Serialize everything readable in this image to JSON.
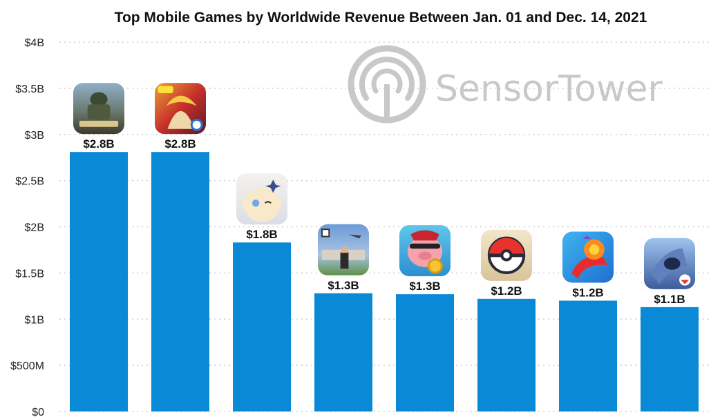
{
  "chart_data": {
    "type": "bar",
    "title": "Top Mobile Games by Worldwide Revenue Between Jan. 01 and Dec. 14, 2021",
    "xlabel": "",
    "ylabel": "",
    "ylim": [
      0,
      4000000000
    ],
    "grid": true,
    "legend": "none",
    "y_ticks": [
      {
        "value": 0,
        "label": "$0"
      },
      {
        "value": 500000000,
        "label": "$500M"
      },
      {
        "value": 1000000000,
        "label": "$1B"
      },
      {
        "value": 1500000000,
        "label": "$1.5B"
      },
      {
        "value": 2000000000,
        "label": "$2B"
      },
      {
        "value": 2500000000,
        "label": "$2.5B"
      },
      {
        "value": 3000000000,
        "label": "$3B"
      },
      {
        "value": 3500000000,
        "label": "$3.5B"
      },
      {
        "value": 4000000000,
        "label": "$4B"
      }
    ],
    "bars": [
      {
        "value": 2810000000,
        "label": "$2.8B",
        "icon": "pubg-mobile-icon"
      },
      {
        "value": 2810000000,
        "label": "$2.8B",
        "icon": "honor-of-kings-icon"
      },
      {
        "value": 1830000000,
        "label": "$1.8B",
        "icon": "genshin-impact-icon"
      },
      {
        "value": 1280000000,
        "label": "$1.3B",
        "icon": "roblox-icon"
      },
      {
        "value": 1270000000,
        "label": "$1.3B",
        "icon": "coin-master-icon"
      },
      {
        "value": 1220000000,
        "label": "$1.2B",
        "icon": "pokemon-go-icon"
      },
      {
        "value": 1200000000,
        "label": "$1.2B",
        "icon": "candy-crush-saga-icon"
      },
      {
        "value": 1130000000,
        "label": "$1.1B",
        "icon": "free-fire-icon"
      }
    ],
    "bar_color": "#0a89d6",
    "grid_color": "#cfcfcf"
  },
  "watermark": {
    "text": "SensorTower",
    "icon": "sensortower-logo-icon",
    "color": "#c8c8c8"
  }
}
